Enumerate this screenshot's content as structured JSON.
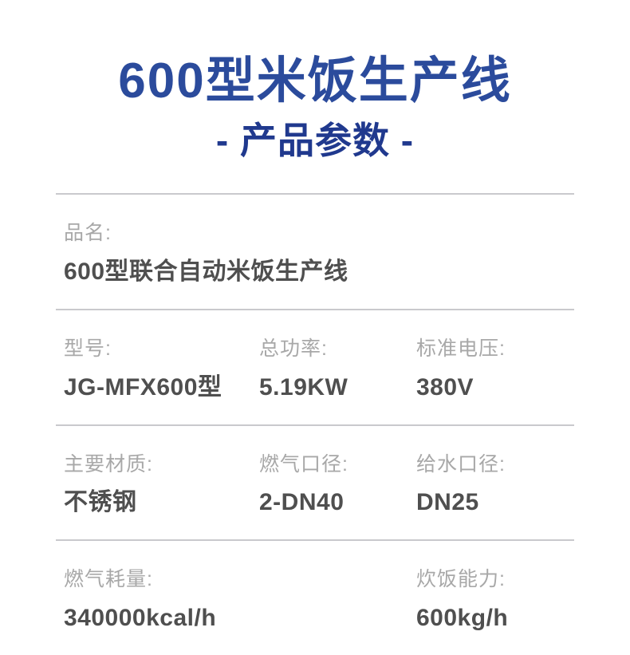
{
  "header": {
    "title": "600型米饭生产线",
    "subtitle": "- 产品参数 -"
  },
  "colors": {
    "title_blue": "#2b4b9c",
    "subtitle_blue": "#20398e",
    "label_gray": "#a8a8a8",
    "value_gray": "#4f4f4f",
    "divider_gray": "#c9c9cd"
  },
  "specs": {
    "rows": [
      {
        "cells": [
          {
            "label": "品名:",
            "value": "600型联合自动米饭生产线"
          }
        ]
      },
      {
        "cells": [
          {
            "label": "型号:",
            "value": "JG-MFX600型"
          },
          {
            "label": "总功率:",
            "value": "5.19KW"
          },
          {
            "label": "标准电压:",
            "value": "380V"
          }
        ]
      },
      {
        "cells": [
          {
            "label": "主要材质:",
            "value": "不锈钢"
          },
          {
            "label": "燃气口径:",
            "value": "2-DN40"
          },
          {
            "label": "给水口径:",
            "value": "DN25"
          }
        ]
      },
      {
        "cells": [
          {
            "label": "燃气耗量:",
            "value": "340000kcal/h"
          },
          {
            "label": "炊饭能力:",
            "value": "600kg/h"
          }
        ]
      }
    ]
  }
}
